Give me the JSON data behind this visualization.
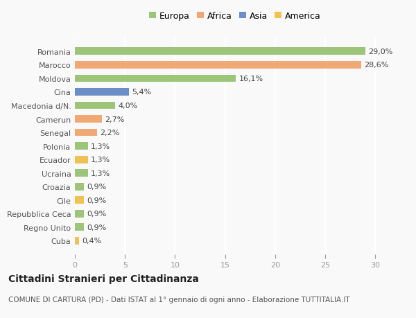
{
  "categories": [
    "Cuba",
    "Regno Unito",
    "Repubblica Ceca",
    "Cile",
    "Croazia",
    "Ucraina",
    "Ecuador",
    "Polonia",
    "Senegal",
    "Camerun",
    "Macedonia d/N.",
    "Cina",
    "Moldova",
    "Marocco",
    "Romania"
  ],
  "values": [
    0.4,
    0.9,
    0.9,
    0.9,
    0.9,
    1.3,
    1.3,
    1.3,
    2.2,
    2.7,
    4.0,
    5.4,
    16.1,
    28.6,
    29.0
  ],
  "labels": [
    "0,4%",
    "0,9%",
    "0,9%",
    "0,9%",
    "0,9%",
    "1,3%",
    "1,3%",
    "1,3%",
    "2,2%",
    "2,7%",
    "4,0%",
    "5,4%",
    "16,1%",
    "28,6%",
    "29,0%"
  ],
  "colors": [
    "#f2c155",
    "#9dc57a",
    "#9dc57a",
    "#f2c155",
    "#9dc57a",
    "#9dc57a",
    "#f2c155",
    "#9dc57a",
    "#f0a875",
    "#f0a875",
    "#9dc57a",
    "#6b8ec8",
    "#9dc57a",
    "#f0a875",
    "#9dc57a"
  ],
  "legend_labels": [
    "Europa",
    "Africa",
    "Asia",
    "America"
  ],
  "legend_colors": [
    "#9dc57a",
    "#f0a875",
    "#6b8ec8",
    "#f2c155"
  ],
  "title": "Cittadini Stranieri per Cittadinanza",
  "subtitle": "COMUNE DI CARTURA (PD) - Dati ISTAT al 1° gennaio di ogni anno - Elaborazione TUTTITALIA.IT",
  "xlim": [
    0,
    32
  ],
  "xticks": [
    0,
    5,
    10,
    15,
    20,
    25,
    30
  ],
  "background_color": "#f9f9f9",
  "bar_height": 0.55,
  "grid_color": "#ffffff",
  "title_fontsize": 10,
  "subtitle_fontsize": 7.5,
  "tick_fontsize": 8,
  "label_fontsize": 8,
  "legend_fontsize": 9
}
